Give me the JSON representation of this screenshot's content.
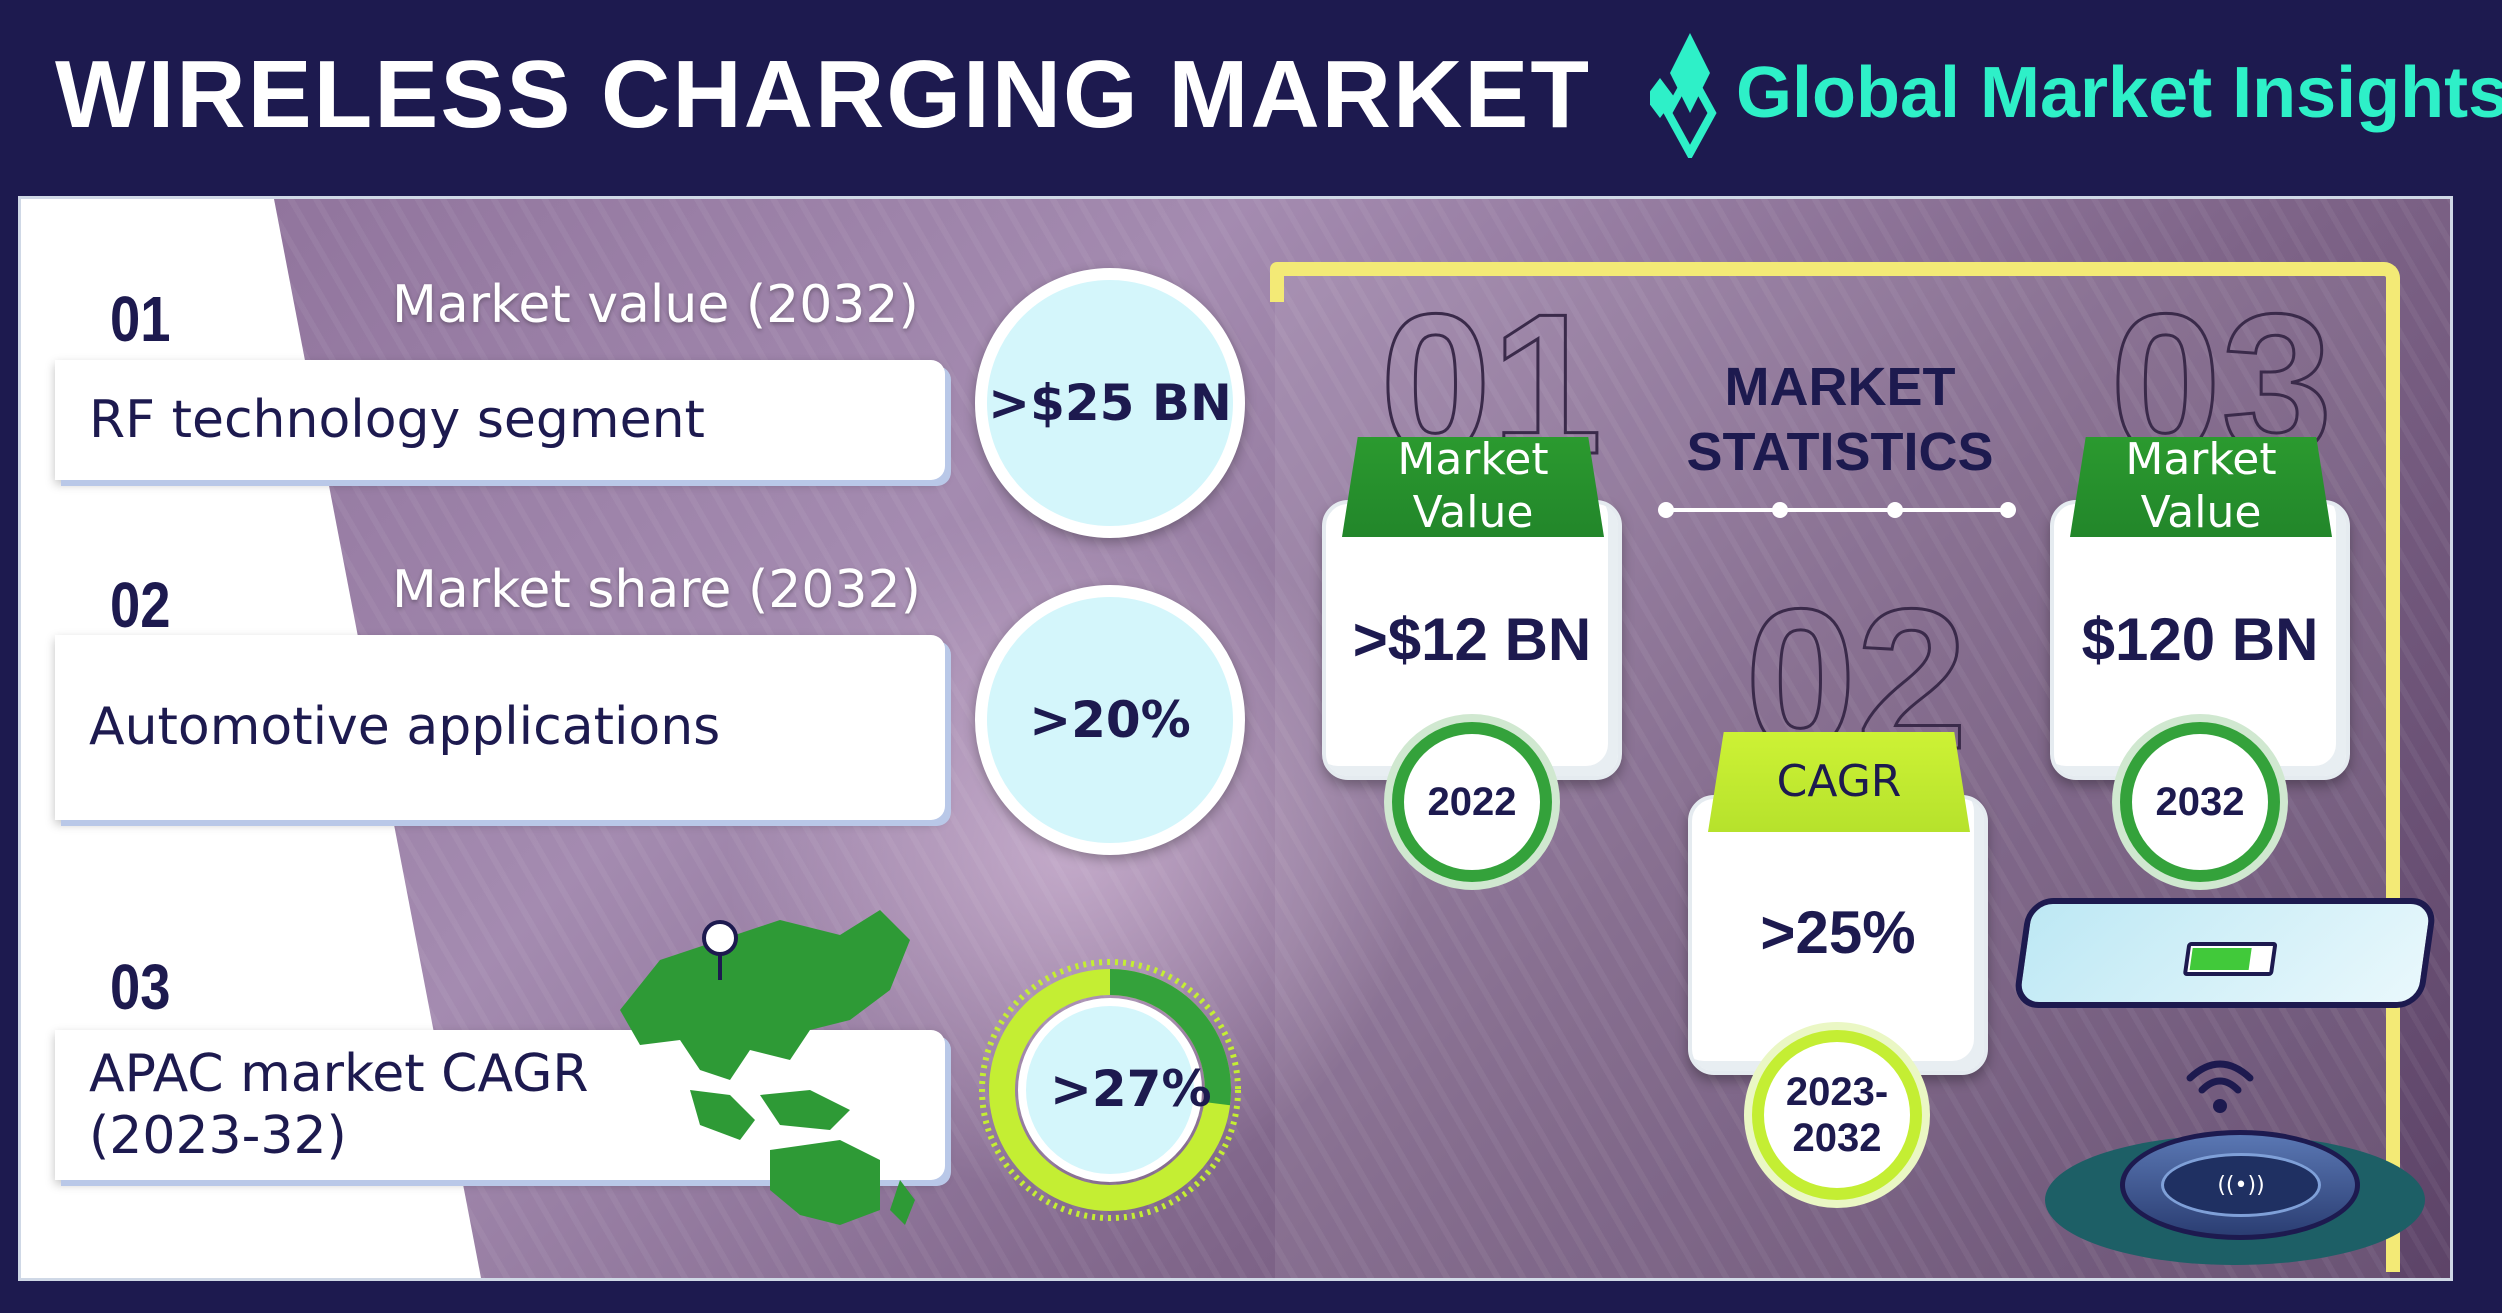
{
  "header": {
    "title": "WIRELESS CHARGING MARKET",
    "logo_text": "Global Market Insights"
  },
  "left_items": [
    {
      "num": "01",
      "caption": "Market value (2032)",
      "label": "RF technology segment",
      "value": ">$25 BN"
    },
    {
      "num": "02",
      "caption": "Market share (2032)",
      "label": "Automotive applications",
      "value": ">20%"
    },
    {
      "num": "03",
      "caption": "",
      "label_line1": "APAC market CAGR",
      "label_line2": "(2023-32)",
      "value": ">27%",
      "progress_percent": 27
    }
  ],
  "statistics": {
    "title_line1": "MARKET",
    "title_line2": "STATISTICS",
    "cards": [
      {
        "big_num": "01",
        "head_line1": "Market",
        "head_line2": "Value",
        "value": ">$12 BN",
        "year": "2022"
      },
      {
        "big_num": "02",
        "head_line1": "CAGR",
        "head_line2": "",
        "value": ">25%",
        "year_line1": "2023-",
        "year_line2": "2032"
      },
      {
        "big_num": "03",
        "head_line1": "Market",
        "head_line2": "Value",
        "value": "$120 BN",
        "year": "2032"
      }
    ]
  },
  "colors": {
    "navy": "#1d1a4f",
    "green": "#2b9a2f",
    "lime": "#c4ee33",
    "yellow": "#f3ea76",
    "logo": "#2ef0c8",
    "light_blue": "#d4f6fb"
  },
  "icons": [
    "logo-diamond-icon",
    "map-pin-icon",
    "apac-map-icon",
    "phone-icon",
    "battery-icon",
    "wifi-icon",
    "charging-pad-icon"
  ]
}
